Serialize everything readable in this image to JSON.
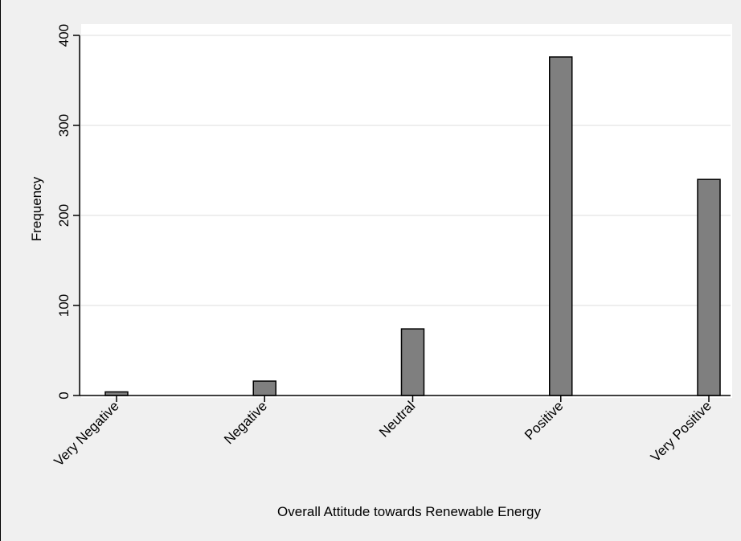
{
  "chart_data": {
    "type": "bar",
    "categories": [
      "Very Negative",
      "Negative",
      "Neutral",
      "Positive",
      "Very Positive"
    ],
    "values": [
      4,
      16,
      74,
      376,
      240
    ],
    "xlabel": "Overall Attitude towards Renewable Energy",
    "ylabel": "Frequency",
    "ylim": [
      0,
      400
    ],
    "yticks": [
      0,
      100,
      200,
      300,
      400
    ],
    "grid": true,
    "bar_color": "#7f7f7f",
    "bar_edge_color": "#000000",
    "background_color": "#f0f0f0",
    "plot_background_color": "#ffffff"
  }
}
